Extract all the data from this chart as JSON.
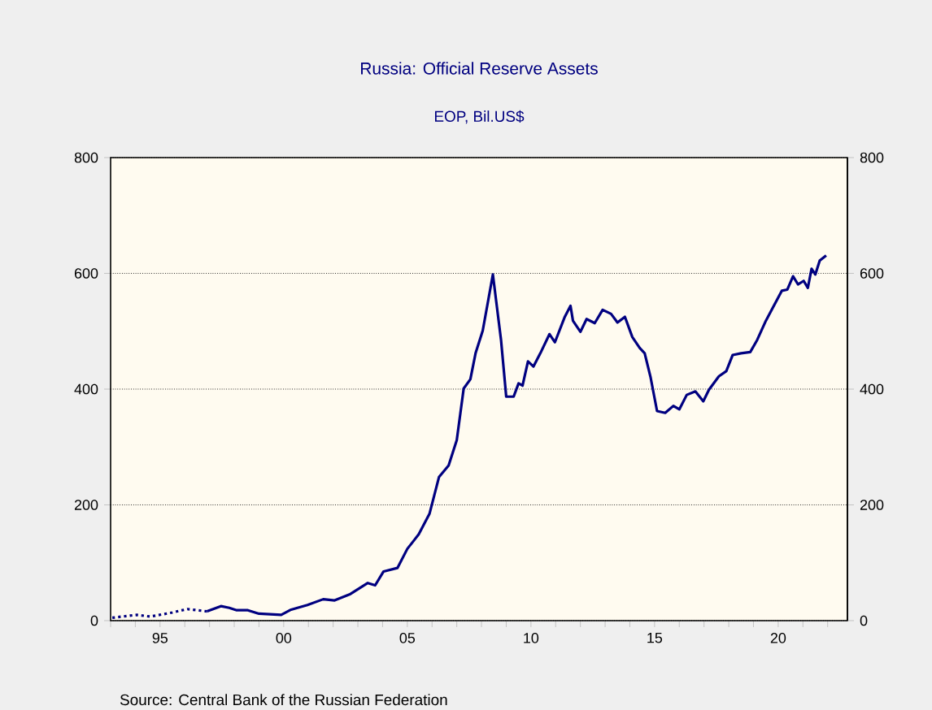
{
  "chart_data": {
    "type": "line",
    "title": "Russia: Official Reserve Assets",
    "subtitle": "EOP, Bil.US$",
    "annotations": [
      "Source:  Central Bank of the Russian Federation"
    ],
    "xlim": [
      1993,
      2022.8
    ],
    "xticks": [
      {
        "value": 1993,
        "label": null
      },
      {
        "value": 1994,
        "label": null
      },
      {
        "value": 1995,
        "label": "95"
      },
      {
        "value": 1996,
        "label": null
      },
      {
        "value": 1997,
        "label": null
      },
      {
        "value": 1998,
        "label": null
      },
      {
        "value": 1999,
        "label": null
      },
      {
        "value": 2000,
        "label": "00"
      },
      {
        "value": 2001,
        "label": null
      },
      {
        "value": 2002,
        "label": null
      },
      {
        "value": 2003,
        "label": null
      },
      {
        "value": 2004,
        "label": null
      },
      {
        "value": 2005,
        "label": "05"
      },
      {
        "value": 2006,
        "label": null
      },
      {
        "value": 2007,
        "label": null
      },
      {
        "value": 2008,
        "label": null
      },
      {
        "value": 2009,
        "label": null
      },
      {
        "value": 2010,
        "label": "10"
      },
      {
        "value": 2011,
        "label": null
      },
      {
        "value": 2012,
        "label": null
      },
      {
        "value": 2013,
        "label": null
      },
      {
        "value": 2014,
        "label": null
      },
      {
        "value": 2015,
        "label": "15"
      },
      {
        "value": 2016,
        "label": null
      },
      {
        "value": 2017,
        "label": null
      },
      {
        "value": 2018,
        "label": null
      },
      {
        "value": 2019,
        "label": null
      },
      {
        "value": 2020,
        "label": "20"
      },
      {
        "value": 2021,
        "label": null
      },
      {
        "value": 2022,
        "label": null
      }
    ],
    "ylim": [
      0,
      800
    ],
    "yticks": [
      0,
      200,
      400,
      600,
      800
    ],
    "y2lim": [
      0,
      800
    ],
    "y2ticks": [
      0,
      200,
      400,
      600,
      800
    ],
    "grid": "y",
    "series": [
      {
        "color": "#000080",
        "line_style": "dotted",
        "x": [
          1993.07,
          1994.06,
          1994.6,
          1995.5,
          1996.1,
          1996.9
        ],
        "values": [
          5,
          10,
          7,
          14,
          20,
          16
        ]
      },
      {
        "color": "#000080",
        "line_style": "solid",
        "x": [
          1996.9,
          1997.46,
          1997.8,
          1998.1,
          1998.55,
          1999.0,
          1999.9,
          2000.3,
          2000.96,
          2001.6,
          2002.06,
          2002.7,
          2003.4,
          2003.7,
          2004.04,
          2004.6,
          2005.0,
          2005.46,
          2005.9,
          2006.28,
          2006.67,
          2007.0,
          2007.28,
          2007.55,
          2007.76,
          2008.05,
          2008.46,
          2008.79,
          2009.0,
          2009.3,
          2009.5,
          2009.66,
          2009.88,
          2010.1,
          2010.38,
          2010.75,
          2010.97,
          2011.37,
          2011.6,
          2011.7,
          2012.0,
          2012.25,
          2012.58,
          2012.9,
          2013.24,
          2013.5,
          2013.8,
          2014.1,
          2014.4,
          2014.6,
          2014.84,
          2015.1,
          2015.43,
          2015.76,
          2016.0,
          2016.3,
          2016.65,
          2016.97,
          2017.2,
          2017.6,
          2017.9,
          2018.16,
          2018.5,
          2018.87,
          2019.15,
          2019.5,
          2019.8,
          2020.15,
          2020.37,
          2020.6,
          2020.8,
          2021.03,
          2021.2,
          2021.35,
          2021.5,
          2021.68,
          2021.94
        ],
        "values": [
          16,
          25,
          22,
          18,
          18,
          12,
          10,
          19,
          27,
          37,
          35,
          46,
          65,
          61,
          85,
          91,
          124,
          149,
          185,
          248,
          268,
          312,
          401,
          417,
          462,
          501,
          598,
          485,
          387,
          387,
          410,
          406,
          448,
          439,
          462,
          495,
          481,
          525,
          544,
          518,
          499,
          521,
          514,
          537,
          530,
          515,
          525,
          490,
          471,
          462,
          420,
          362,
          359,
          371,
          365,
          390,
          396,
          379,
          399,
          422,
          431,
          459,
          462,
          464,
          485,
          518,
          542,
          570,
          572,
          595,
          581,
          587,
          575,
          608,
          598,
          622,
          631
        ]
      }
    ]
  }
}
